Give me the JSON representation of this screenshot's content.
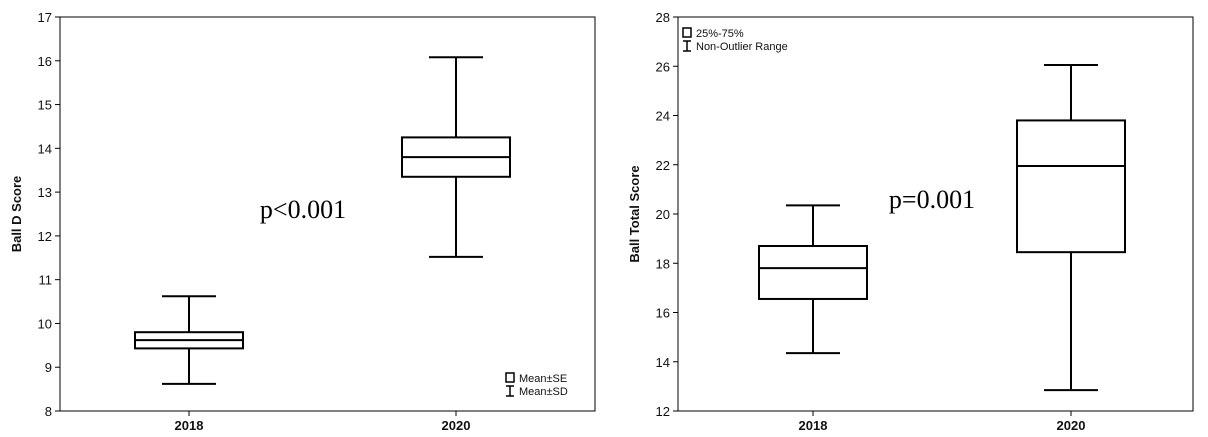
{
  "chart_data": [
    {
      "type": "box",
      "ylabel": "Ball D Score",
      "ylim": [
        8,
        17
      ],
      "yticks": [
        "8",
        "9",
        "10",
        "11",
        "12",
        "13",
        "14",
        "15",
        "16",
        "17"
      ],
      "categories": [
        "2018",
        "2020"
      ],
      "boxes": [
        {
          "category": "2018",
          "box_low": 9.43,
          "median": 9.62,
          "box_high": 9.8,
          "whisker_low": 8.62,
          "whisker_high": 10.62
        },
        {
          "category": "2020",
          "box_low": 13.35,
          "median": 13.8,
          "box_high": 14.25,
          "whisker_low": 11.52,
          "whisker_high": 16.08
        }
      ],
      "annotation": "p<0.001",
      "legend": {
        "position": "bottom-right",
        "box_label": "Mean±SE",
        "whisker_label": "Mean±SD"
      }
    },
    {
      "type": "box",
      "ylabel": "Ball Total Score",
      "ylim": [
        12,
        28
      ],
      "yticks": [
        "12",
        "14",
        "16",
        "18",
        "20",
        "22",
        "24",
        "26",
        "28"
      ],
      "categories": [
        "2018",
        "2020"
      ],
      "boxes": [
        {
          "category": "2018",
          "box_low": 16.55,
          "median": 17.8,
          "box_high": 18.7,
          "whisker_low": 14.35,
          "whisker_high": 20.35
        },
        {
          "category": "2020",
          "box_low": 18.45,
          "median": 21.95,
          "box_high": 23.8,
          "whisker_low": 12.85,
          "whisker_high": 26.05
        }
      ],
      "annotation": "p=0.001",
      "legend": {
        "position": "top-left",
        "box_label": "25%-75%",
        "whisker_label": "Non-Outlier Range"
      }
    }
  ]
}
